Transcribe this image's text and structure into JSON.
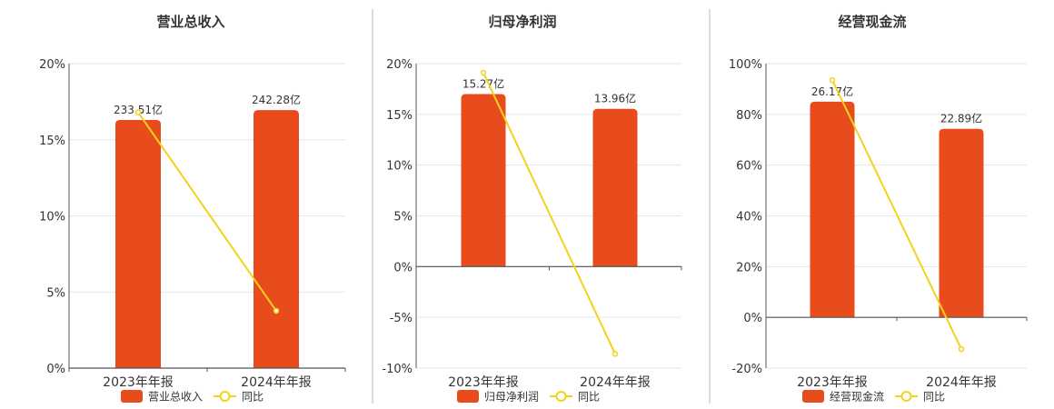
{
  "colors": {
    "bar": "#E84C1C",
    "line": "#F2D21B",
    "grid": "#E6E6E6",
    "axis": "#555555",
    "divider": "#BBBBBB"
  },
  "chart_data": [
    {
      "type": "bar",
      "title": "营业总收入",
      "categories": [
        "2023年年报",
        "2024年年报"
      ],
      "bar_series": {
        "name": "营业总收入",
        "labels": [
          "233.51亿",
          "242.28亿"
        ],
        "values": [
          233.51,
          242.28
        ]
      },
      "line_series": {
        "name": "同比",
        "values": [
          16.8,
          3.76
        ]
      },
      "ylim": [
        0,
        20
      ],
      "yticks": [
        0,
        5,
        10,
        15,
        20
      ],
      "ytick_labels": [
        "0%",
        "5%",
        "10%",
        "15%",
        "20%"
      ]
    },
    {
      "type": "bar",
      "title": "归母净利润",
      "categories": [
        "2023年年报",
        "2024年年报"
      ],
      "bar_series": {
        "name": "归母净利润",
        "labels": [
          "15.27亿",
          "13.96亿"
        ],
        "values": [
          15.27,
          13.96
        ]
      },
      "line_series": {
        "name": "同比",
        "values": [
          19.1,
          -8.6
        ]
      },
      "ylim": [
        -10,
        20
      ],
      "yticks": [
        -10,
        -5,
        0,
        5,
        10,
        15,
        20
      ],
      "ytick_labels": [
        "-10%",
        "-5%",
        "0%",
        "5%",
        "10%",
        "15%",
        "20%"
      ]
    },
    {
      "type": "bar",
      "title": "经营现金流",
      "categories": [
        "2023年年报",
        "2024年年报"
      ],
      "bar_series": {
        "name": "经营现金流",
        "labels": [
          "26.17亿",
          "22.89亿"
        ],
        "values": [
          26.17,
          22.89
        ]
      },
      "line_series": {
        "name": "同比",
        "values": [
          93.5,
          -12.5
        ]
      },
      "ylim": [
        -20,
        100
      ],
      "yticks": [
        -20,
        0,
        20,
        40,
        60,
        80,
        100
      ],
      "ytick_labels": [
        "-20%",
        "0%",
        "20%",
        "40%",
        "60%",
        "80%",
        "100%"
      ]
    }
  ]
}
